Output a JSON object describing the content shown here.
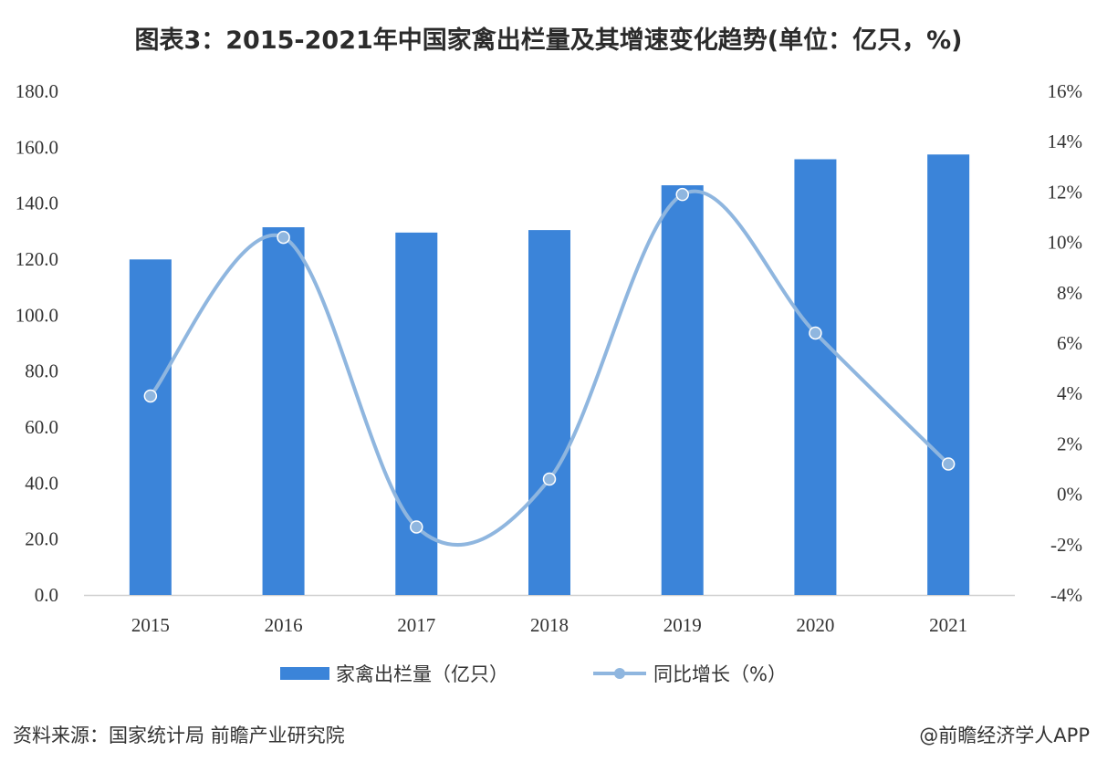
{
  "title": "图表3：2015-2021年中国家禽出栏量及其增速变化趋势(单位：亿只，%)",
  "source": "资料来源：国家统计局 前瞻产业研究院",
  "brand": "@前瞻经济学人APP",
  "colors": {
    "bar": "#3b84d9",
    "line": "#8fb6df",
    "marker": "#8fb6df",
    "grid": "#d0d0d0"
  },
  "chart_data": {
    "type": "bar",
    "categories": [
      "2015",
      "2016",
      "2017",
      "2018",
      "2019",
      "2020",
      "2021"
    ],
    "series": [
      {
        "name": "家禽出栏量（亿只）",
        "type": "bar",
        "axis": "left",
        "values": [
          119.9,
          131.4,
          129.5,
          130.4,
          146.4,
          155.7,
          157.4
        ]
      },
      {
        "name": "同比增长（%）",
        "type": "line",
        "axis": "right",
        "smooth": true,
        "values": [
          3.9,
          10.2,
          -1.3,
          0.6,
          11.9,
          6.4,
          1.2
        ]
      }
    ],
    "y_left": {
      "ylim": [
        0,
        180
      ],
      "ticks": [
        "0.0",
        "20.0",
        "40.0",
        "60.0",
        "80.0",
        "100.0",
        "120.0",
        "140.0",
        "160.0",
        "180.0"
      ]
    },
    "y_right": {
      "ylim": [
        -4,
        16
      ],
      "ticks": [
        "-4%",
        "-2%",
        "0%",
        "2%",
        "4%",
        "6%",
        "8%",
        "10%",
        "12%",
        "14%",
        "16%"
      ]
    },
    "grid": false,
    "legend_position": "bottom-center"
  }
}
